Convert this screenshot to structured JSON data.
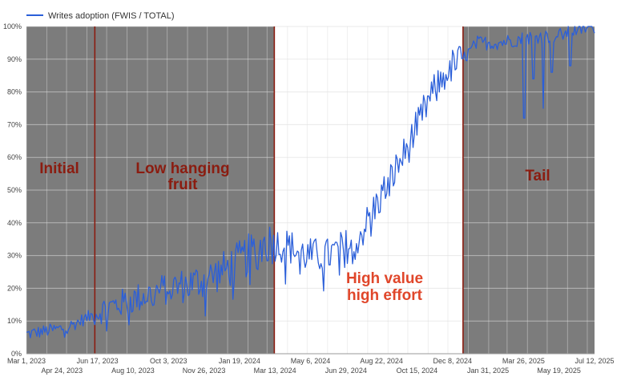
{
  "chart_data": {
    "type": "line",
    "legend": {
      "label": "Writes adoption (FWIS / TOTAL)",
      "position": "top-left",
      "color": "#2b5fd9"
    },
    "x_axis": {
      "range": [
        "2023-03-01",
        "2025-07-12"
      ],
      "ticks_upper": [
        "Mar 1, 2023",
        "Jun 17, 2023",
        "Oct 3, 2023",
        "Jan 19, 2024",
        "May 6, 2024",
        "Aug 22, 2024",
        "Dec 8, 2024",
        "Mar 26, 2025",
        "Jul 12, 2025"
      ],
      "ticks_lower": [
        "Apr 24, 2023",
        "Aug 10, 2023",
        "Nov 26, 2023",
        "Mar 13, 2024",
        "Jun 29, 2024",
        "Oct 15, 2024",
        "Jan 31, 2025",
        "May 19, 2025"
      ]
    },
    "y_axis": {
      "ylim": [
        0,
        100
      ],
      "ticks": [
        "0%",
        "10%",
        "20%",
        "30%",
        "40%",
        "50%",
        "60%",
        "70%",
        "80%",
        "90%",
        "100%"
      ],
      "grid": true
    },
    "regions": [
      {
        "start": "2023-03-01",
        "end": "2023-06-13",
        "shaded": true,
        "label": "Initial",
        "label_color": "#8b1c10"
      },
      {
        "start": "2023-06-13",
        "end": "2024-03-12",
        "shaded": true,
        "label": "Low hanging fruit",
        "label_color": "#8b1c10"
      },
      {
        "start": "2024-03-12",
        "end": "2024-12-24",
        "shaded": false,
        "label": "High value high effort",
        "label_color": "#e0462a"
      },
      {
        "start": "2024-12-24",
        "end": "2025-07-12",
        "shaded": true,
        "label": "Tail",
        "label_color": "#8b1c10"
      }
    ],
    "boundary_color": "#8b1c10",
    "shade_color": "#7c7c7c",
    "series": [
      {
        "name": "Writes adoption (FWIS / TOTAL)",
        "color": "#2b5fd9",
        "points": [
          [
            "2023-03-01",
            6
          ],
          [
            "2023-04-01",
            7
          ],
          [
            "2023-05-01",
            8
          ],
          [
            "2023-06-01",
            11
          ],
          [
            "2023-07-01",
            14
          ],
          [
            "2023-08-01",
            16
          ],
          [
            "2023-09-01",
            18
          ],
          [
            "2023-10-01",
            20
          ],
          [
            "2023-11-01",
            21
          ],
          [
            "2023-12-01",
            23
          ],
          [
            "2024-01-01",
            26
          ],
          [
            "2024-02-01",
            30
          ],
          [
            "2024-03-01",
            34
          ],
          [
            "2024-04-01",
            33
          ],
          [
            "2024-05-01",
            30
          ],
          [
            "2024-06-01",
            30
          ],
          [
            "2024-07-01",
            33
          ],
          [
            "2024-07-20",
            36
          ],
          [
            "2024-08-10",
            44
          ],
          [
            "2024-09-01",
            52
          ],
          [
            "2024-10-01",
            63
          ],
          [
            "2024-11-01",
            77
          ],
          [
            "2024-12-01",
            87
          ],
          [
            "2024-12-24",
            90
          ],
          [
            "2025-01-15",
            95
          ],
          [
            "2025-02-15",
            95
          ],
          [
            "2025-03-15",
            96
          ],
          [
            "2025-04-15",
            97
          ],
          [
            "2025-05-15",
            97
          ],
          [
            "2025-06-15",
            99
          ],
          [
            "2025-07-12",
            100
          ]
        ],
        "dips": [
          [
            "2025-03-27",
            72
          ],
          [
            "2025-04-10",
            84
          ],
          [
            "2025-04-25",
            75
          ],
          [
            "2025-05-08",
            86
          ],
          [
            "2025-06-05",
            88
          ]
        ]
      }
    ]
  }
}
